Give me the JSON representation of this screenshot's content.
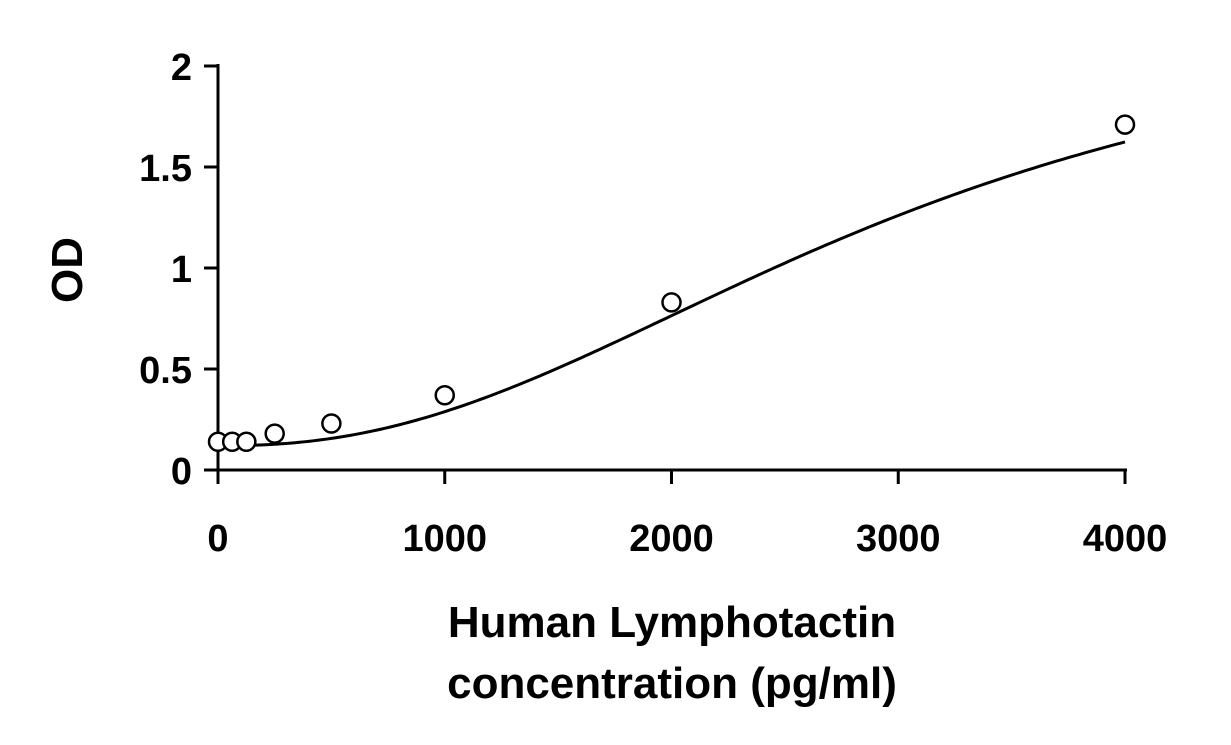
{
  "chart_data": {
    "type": "scatter",
    "title": "",
    "xlabel_lines": [
      "Human Lymphotactin",
      "concentration (pg/ml)"
    ],
    "ylabel": "OD",
    "xlim": [
      0,
      4000
    ],
    "ylim": [
      0,
      2
    ],
    "xticks": [
      0,
      1000,
      2000,
      3000,
      4000
    ],
    "yticks": [
      0,
      0.5,
      1,
      1.5,
      2
    ],
    "ytick_labels": [
      "0",
      "0.5",
      "1",
      "1.5",
      "2"
    ],
    "grid": false,
    "legend": "none",
    "series": [
      {
        "points": [
          {
            "x": 0,
            "y": 0.14
          },
          {
            "x": 62.5,
            "y": 0.14
          },
          {
            "x": 125,
            "y": 0.14
          },
          {
            "x": 250,
            "y": 0.18
          },
          {
            "x": 500,
            "y": 0.23
          },
          {
            "x": 1000,
            "y": 0.37
          },
          {
            "x": 2000,
            "y": 0.83
          },
          {
            "x": 4000,
            "y": 1.71
          }
        ],
        "marker": "open-circle",
        "fit_curve": true
      }
    ],
    "colors": {
      "line": "#000000",
      "marker_fill": "#ffffff"
    }
  }
}
